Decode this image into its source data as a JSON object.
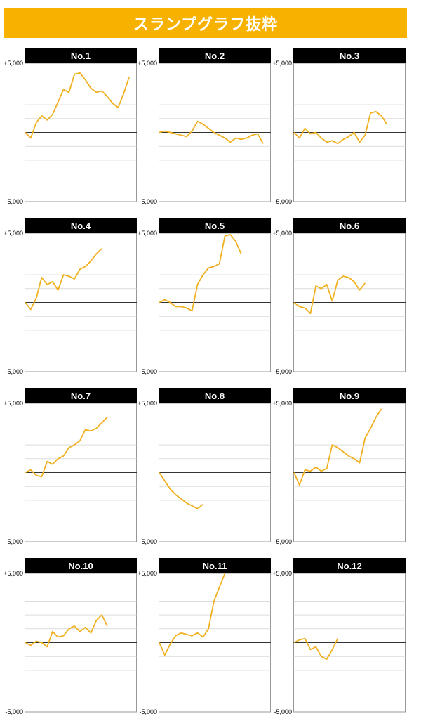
{
  "title": "スランプグラフ抜粋",
  "colors": {
    "banner": "#f7b200",
    "line": "#f0b020",
    "title_bg": "#000000",
    "zero_line": "#333333",
    "grid": "#c8c8c8"
  },
  "chart_data": [
    {
      "type": "line",
      "title": "No.1",
      "ylim": [
        -5000,
        5000
      ],
      "yticks": [
        "+5,000",
        "-5,000"
      ],
      "y": [
        0,
        -400,
        700,
        1200,
        900,
        1300,
        2200,
        3100,
        2900,
        4200,
        4300,
        3800,
        3200,
        2900,
        3000,
        2600,
        2100,
        1800,
        2800,
        4000
      ]
    },
    {
      "type": "line",
      "title": "No.2",
      "ylim": [
        -5000,
        5000
      ],
      "yticks": [
        "+5,000",
        "-5,000"
      ],
      "y": [
        0,
        100,
        0,
        -100,
        -200,
        -300,
        100,
        800,
        600,
        300,
        0,
        -200,
        -400,
        -700,
        -400,
        -500,
        -400,
        -200,
        -100,
        -800
      ]
    },
    {
      "type": "line",
      "title": "No.3",
      "ylim": [
        -5000,
        5000
      ],
      "yticks": [
        "+5,000",
        "-5,000"
      ],
      "y": [
        0,
        -400,
        300,
        -100,
        0,
        -400,
        -700,
        -600,
        -800,
        -500,
        -300,
        0,
        -700,
        -200,
        1400,
        1500,
        1200,
        600
      ]
    },
    {
      "type": "line",
      "title": "No.4",
      "ylim": [
        -5000,
        5000
      ],
      "yticks": [
        "+5,000",
        "-5,000"
      ],
      "y": [
        0,
        -500,
        300,
        1800,
        1300,
        1500,
        900,
        2000,
        1900,
        1700,
        2400,
        2600,
        3000,
        3500,
        3900
      ]
    },
    {
      "type": "line",
      "title": "No.5",
      "ylim": [
        -5000,
        5000
      ],
      "yticks": [
        "+5,000",
        "-5,000"
      ],
      "y": [
        0,
        200,
        0,
        -300,
        -300,
        -400,
        -600,
        1300,
        2000,
        2500,
        2600,
        2800,
        4800,
        4900,
        4400,
        3500
      ]
    },
    {
      "type": "line",
      "title": "No.6",
      "ylim": [
        -5000,
        5000
      ],
      "yticks": [
        "+5,000",
        "-5,000"
      ],
      "y": [
        0,
        -300,
        -400,
        -800,
        1200,
        1000,
        1300,
        100,
        1600,
        1900,
        1800,
        1500,
        900,
        1400
      ]
    },
    {
      "type": "line",
      "title": "No.7",
      "ylim": [
        -5000,
        5000
      ],
      "yticks": [
        "+5,000",
        "-5,000"
      ],
      "y": [
        0,
        200,
        -200,
        -300,
        800,
        600,
        1000,
        1200,
        1800,
        2000,
        2300,
        3100,
        3000,
        3200,
        3600,
        4000
      ]
    },
    {
      "type": "line",
      "title": "No.8",
      "ylim": [
        -5000,
        5000
      ],
      "yticks": [
        "+5,000",
        "-5,000"
      ],
      "y": [
        0,
        -600,
        -1200,
        -1600,
        -1900,
        -2200,
        -2400,
        -2600,
        -2300
      ]
    },
    {
      "type": "line",
      "title": "No.9",
      "ylim": [
        -5000,
        5000
      ],
      "yticks": [
        "+5,000",
        "-5,000"
      ],
      "y": [
        0,
        -900,
        200,
        100,
        400,
        100,
        300,
        2000,
        1800,
        1500,
        1200,
        1000,
        700,
        2500,
        3200,
        4000,
        4600
      ]
    },
    {
      "type": "line",
      "title": "No.10",
      "ylim": [
        -5000,
        5000
      ],
      "yticks": [
        "+5,000",
        "-5,000"
      ],
      "y": [
        0,
        -200,
        100,
        0,
        -300,
        800,
        400,
        500,
        1000,
        1200,
        800,
        1100,
        700,
        1600,
        2000,
        1200
      ]
    },
    {
      "type": "line",
      "title": "No.11",
      "ylim": [
        -5000,
        5000
      ],
      "yticks": [
        "+5,000",
        "-5,000"
      ],
      "y": [
        0,
        -900,
        -100,
        500,
        700,
        600,
        500,
        700,
        400,
        1000,
        3000,
        4000,
        5000
      ]
    },
    {
      "type": "line",
      "title": "No.12",
      "ylim": [
        -5000,
        5000
      ],
      "yticks": [
        "+5,000",
        "-5,000"
      ],
      "y": [
        0,
        200,
        300,
        -500,
        -300,
        -1000,
        -1200,
        -500,
        300
      ]
    }
  ]
}
